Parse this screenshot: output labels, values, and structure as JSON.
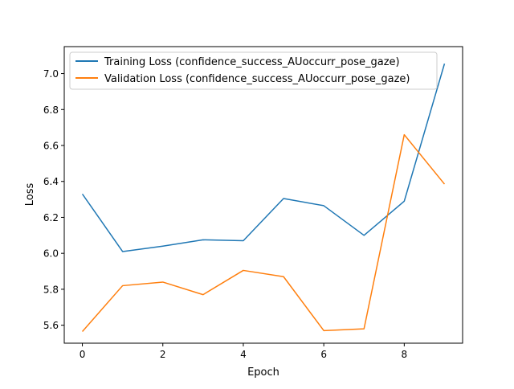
{
  "chart_data": {
    "type": "line",
    "title": "",
    "xlabel": "Epoch",
    "ylabel": "Loss",
    "xlim": [
      -0.45,
      9.45
    ],
    "ylim": [
      5.5,
      7.15
    ],
    "xticks": [
      0,
      2,
      4,
      6,
      8
    ],
    "xtick_labels": [
      "0",
      "2",
      "4",
      "6",
      "8"
    ],
    "yticks": [
      5.6,
      5.8,
      6.0,
      6.2,
      6.4,
      6.6,
      6.8,
      7.0
    ],
    "ytick_labels": [
      "5.6",
      "5.8",
      "6.0",
      "6.2",
      "6.4",
      "6.6",
      "6.8",
      "7.0"
    ],
    "grid": false,
    "legend_position": "top-left",
    "x": [
      0,
      1,
      2,
      3,
      4,
      5,
      6,
      7,
      8,
      9
    ],
    "series": [
      {
        "name": "Training Loss (confidence_success_AUoccurr_pose_gaze)",
        "color": "#1f77b4",
        "values": [
          6.33,
          6.01,
          6.04,
          6.075,
          6.07,
          6.305,
          6.265,
          6.1,
          6.29,
          7.055
        ]
      },
      {
        "name": "Validation Loss (confidence_success_AUoccurr_pose_gaze)",
        "color": "#ff7f0e",
        "values": [
          5.565,
          5.82,
          5.84,
          5.77,
          5.905,
          5.87,
          5.57,
          5.58,
          6.66,
          6.385
        ]
      }
    ]
  }
}
